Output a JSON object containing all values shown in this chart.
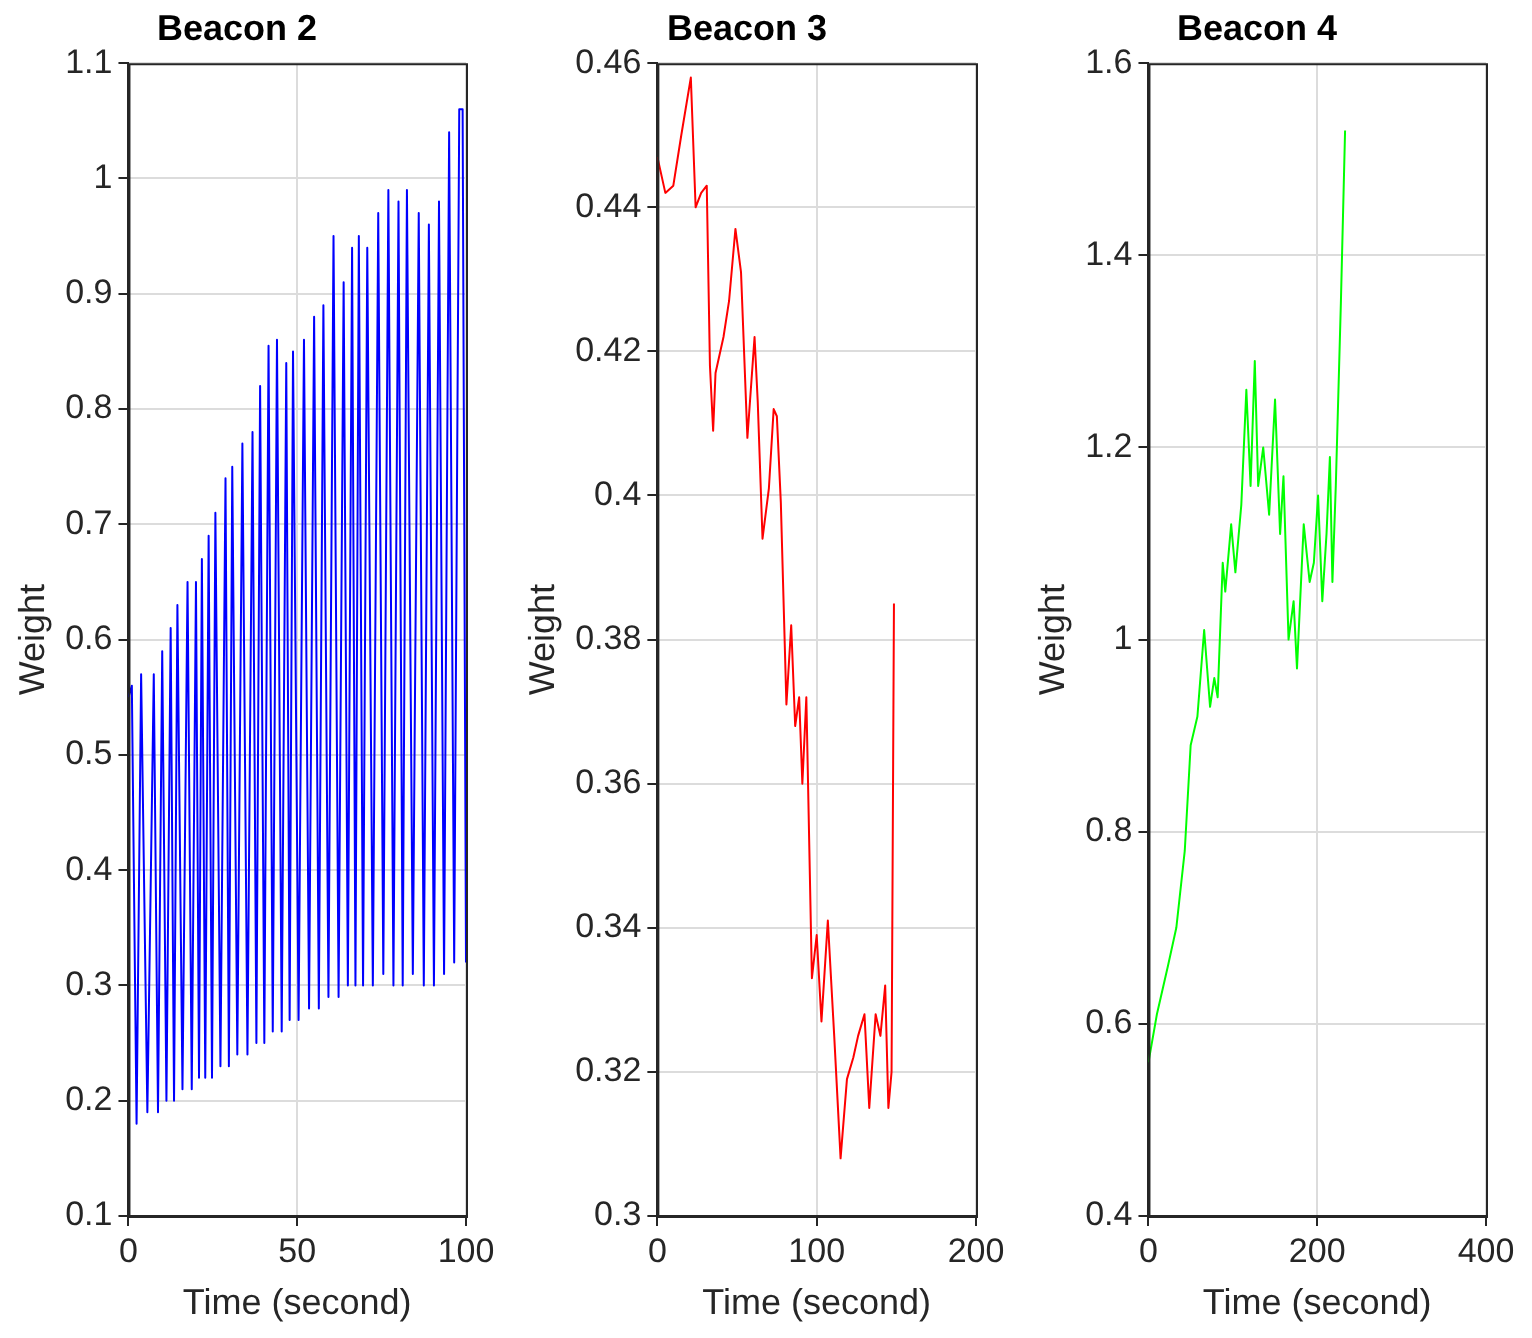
{
  "chart_data": [
    {
      "type": "line",
      "title": "Beacon 2",
      "xlabel": "Time (second)",
      "ylabel": "Weight",
      "xlim": [
        0,
        100
      ],
      "ylim": [
        0.1,
        1.1
      ],
      "xticks": [
        0,
        50,
        100
      ],
      "yticks": [
        0.1,
        0.2,
        0.3,
        0.4,
        0.5,
        0.6,
        0.7,
        0.8,
        0.9,
        1,
        1.1
      ],
      "grid": true,
      "series": [
        {
          "color": "#0000ff",
          "x": [
            0,
            1,
            2.4,
            3.75,
            5.6,
            7.5,
            8.75,
            10,
            11.25,
            12.5,
            13.5,
            14.5,
            16,
            17.5,
            18.75,
            20,
            20.9,
            21.75,
            22.75,
            23.75,
            24.75,
            25.75,
            27.25,
            28.75,
            29.75,
            30.75,
            32.25,
            33.75,
            35.25,
            36.75,
            37.9,
            39,
            40.25,
            41.5,
            42.75,
            44,
            45.4,
            46.75,
            47.75,
            48.75,
            50.4,
            52,
            53.5,
            55,
            56.4,
            57.75,
            59.25,
            60.75,
            62.25,
            63.75,
            65,
            66.25,
            67.25,
            68.25,
            69.5,
            70.75,
            72.4,
            74,
            75.5,
            77,
            78.5,
            80,
            81.25,
            82.5,
            84.25,
            86,
            87.5,
            89,
            90.5,
            92,
            93.5,
            95,
            96.5,
            98,
            99,
            100
          ],
          "values": [
            0.55,
            0.56,
            0.18,
            0.57,
            0.19,
            0.57,
            0.19,
            0.59,
            0.2,
            0.61,
            0.2,
            0.63,
            0.21,
            0.65,
            0.21,
            0.65,
            0.22,
            0.67,
            0.22,
            0.69,
            0.22,
            0.71,
            0.23,
            0.74,
            0.23,
            0.75,
            0.24,
            0.77,
            0.24,
            0.78,
            0.25,
            0.82,
            0.25,
            0.855,
            0.26,
            0.86,
            0.26,
            0.84,
            0.27,
            0.85,
            0.27,
            0.86,
            0.28,
            0.88,
            0.28,
            0.89,
            0.29,
            0.95,
            0.29,
            0.91,
            0.3,
            0.94,
            0.3,
            0.95,
            0.3,
            0.94,
            0.3,
            0.97,
            0.31,
            0.99,
            0.3,
            0.98,
            0.3,
            0.99,
            0.31,
            0.97,
            0.3,
            0.96,
            0.3,
            0.98,
            0.31,
            1.04,
            0.32,
            1.06,
            1.06,
            0.32
          ]
        }
      ]
    },
    {
      "type": "line",
      "title": "Beacon 3",
      "xlabel": "Time (second)",
      "ylabel": "Weight",
      "xlim": [
        0,
        200
      ],
      "ylim": [
        0.3,
        0.46
      ],
      "xticks": [
        0,
        100,
        200
      ],
      "yticks": [
        0.3,
        0.32,
        0.34,
        0.36,
        0.38,
        0.4,
        0.42,
        0.44,
        0.46
      ],
      "grid": true,
      "series": [
        {
          "color": "#ff0000",
          "x": [
            0,
            5,
            10,
            15,
            21,
            24,
            27.5,
            31,
            33,
            35,
            36.5,
            41.5,
            45,
            49,
            52.5,
            56.5,
            61,
            63,
            66,
            70,
            73,
            75,
            77.5,
            81,
            84,
            86.5,
            89,
            91,
            93.5,
            97,
            100,
            103,
            107,
            111,
            115,
            119,
            123,
            126,
            130,
            133,
            137,
            140,
            143,
            145,
            147,
            148.5
          ],
          "values": [
            0.447,
            0.442,
            0.443,
            0.45,
            0.458,
            0.44,
            0.442,
            0.443,
            0.418,
            0.409,
            0.417,
            0.422,
            0.427,
            0.437,
            0.431,
            0.408,
            0.422,
            0.413,
            0.394,
            0.401,
            0.412,
            0.411,
            0.399,
            0.371,
            0.382,
            0.368,
            0.372,
            0.36,
            0.372,
            0.333,
            0.339,
            0.327,
            0.341,
            0.325,
            0.308,
            0.319,
            0.322,
            0.325,
            0.328,
            0.315,
            0.328,
            0.325,
            0.332,
            0.315,
            0.32,
            0.385
          ]
        }
      ]
    },
    {
      "type": "line",
      "title": "Beacon 4",
      "xlabel": "Time (second)",
      "ylabel": "Weight",
      "xlim": [
        0,
        400
      ],
      "ylim": [
        0.4,
        1.6
      ],
      "xticks": [
        0,
        200,
        400
      ],
      "yticks": [
        0.4,
        0.6,
        0.8,
        1,
        1.2,
        1.4,
        1.6
      ],
      "grid": true,
      "series": [
        {
          "color": "#00ff00",
          "x": [
            0,
            10,
            23,
            33,
            38,
            43,
            50,
            58,
            66,
            73,
            78,
            82,
            88,
            91,
            98,
            103,
            110,
            116,
            121,
            126,
            130,
            136,
            143,
            150,
            156,
            160,
            166,
            172,
            176,
            184,
            191,
            196,
            201,
            206,
            211,
            215,
            218,
            222,
            228,
            233
          ],
          "values": [
            0.56,
            0.61,
            0.66,
            0.7,
            0.74,
            0.78,
            0.89,
            0.92,
            1.01,
            0.93,
            0.96,
            0.94,
            1.08,
            1.05,
            1.12,
            1.07,
            1.14,
            1.26,
            1.16,
            1.29,
            1.16,
            1.2,
            1.13,
            1.25,
            1.11,
            1.17,
            1.0,
            1.04,
            0.97,
            1.12,
            1.06,
            1.08,
            1.15,
            1.04,
            1.11,
            1.19,
            1.06,
            1.16,
            1.35,
            1.53
          ]
        }
      ]
    }
  ]
}
